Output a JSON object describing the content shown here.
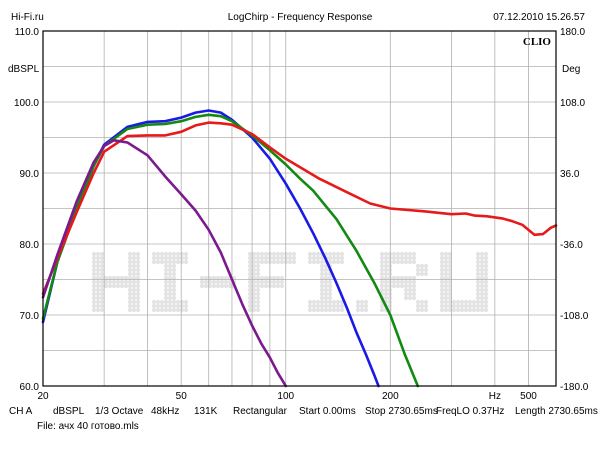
{
  "header": {
    "site": "Hi-Fi.ru",
    "title": "LogChirp - Frequency Response",
    "datetime": "07.12.2010 15.26.57",
    "brand": "CLIO"
  },
  "watermark": "HI-FI.RU",
  "footer": {
    "items": [
      "CH A",
      "dBSPL",
      "1/3 Octave",
      "48kHz",
      "131K",
      "Rectangular",
      "Start 0.00ms",
      "Stop 2730.65ms",
      "FreqLO 0.37Hz",
      "Length 2730.65ms"
    ],
    "file": "File: ачх 40 готово.mls"
  },
  "colors": {
    "background": "#ffffff",
    "grid": "#b0b0b0",
    "blue": "#1a1ae6",
    "green": "#128a12",
    "red": "#e61a1a",
    "purple": "#7a1a8c"
  },
  "chart_data": {
    "type": "line",
    "x_scale": "log",
    "xlim": [
      20,
      600
    ],
    "x_ticks": [
      {
        "value": 20,
        "label": "20"
      },
      {
        "value": 50,
        "label": "50"
      },
      {
        "value": 100,
        "label": "100"
      },
      {
        "value": 200,
        "label": "200"
      },
      {
        "value": 400,
        "label": "Hz"
      },
      {
        "value": 500,
        "label": "500"
      }
    ],
    "ylabel": "dBSPL",
    "ylim": [
      60,
      110
    ],
    "y_ticks": [
      "60.0",
      "70.0",
      "80.0",
      "90.0",
      "100.0",
      "110.0"
    ],
    "y2label": "Deg",
    "y2lim": [
      -180,
      180
    ],
    "y2_ticks": [
      "-180.0",
      "-108.0",
      "-36.0",
      "36.0",
      "108.0",
      "180.0"
    ],
    "grid": true,
    "series": [
      {
        "color": "blue",
        "x": [
          20,
          22,
          25,
          28,
          30,
          35,
          40,
          45,
          50,
          55,
          60,
          65,
          70,
          80,
          90,
          100,
          110,
          120,
          130,
          140,
          150,
          160,
          170,
          180,
          185
        ],
        "y": [
          69,
          77.5,
          85,
          91,
          94,
          96.5,
          97.2,
          97.3,
          97.8,
          98.5,
          98.8,
          98.5,
          97.5,
          95,
          92,
          88.5,
          85,
          81.5,
          78,
          74.5,
          71,
          67.5,
          64.5,
          61.5,
          60
        ]
      },
      {
        "color": "green",
        "x": [
          20,
          22,
          25,
          28,
          30,
          35,
          40,
          45,
          50,
          55,
          60,
          65,
          70,
          80,
          90,
          100,
          110,
          120,
          140,
          160,
          180,
          200,
          220,
          240
        ],
        "y": [
          69.5,
          77.5,
          85,
          91,
          93.8,
          96.2,
          96.8,
          96.9,
          97.3,
          97.9,
          98.2,
          98,
          97.3,
          95.3,
          93.2,
          91.2,
          89.2,
          87.5,
          83.5,
          79,
          74.5,
          70,
          64.5,
          60
        ]
      },
      {
        "color": "red",
        "x": [
          20,
          22,
          25,
          28,
          30,
          35,
          40,
          45,
          50,
          55,
          60,
          65,
          70,
          80,
          90,
          100,
          110,
          125,
          150,
          175,
          200,
          250,
          300,
          330,
          350,
          380,
          420,
          450,
          480,
          520,
          550,
          580,
          600
        ],
        "y": [
          73,
          78,
          84.5,
          90,
          93,
          95.2,
          95.3,
          95.3,
          95.8,
          96.7,
          97.1,
          97,
          96.8,
          95.5,
          93.6,
          92,
          90.8,
          89.2,
          87.3,
          85.7,
          85,
          84.6,
          84.2,
          84.3,
          84,
          83.9,
          83.6,
          83.2,
          82.7,
          81.3,
          81.4,
          82.3,
          82.6
        ]
      },
      {
        "color": "purple",
        "x": [
          20,
          22,
          25,
          28,
          30,
          32,
          35,
          40,
          45,
          50,
          55,
          60,
          65,
          70,
          75,
          80,
          85,
          90,
          95,
          100
        ],
        "y": [
          72.5,
          78.5,
          86,
          91.5,
          93.8,
          94.6,
          94.3,
          92.5,
          89.5,
          87,
          84.7,
          82,
          78.8,
          75,
          71.5,
          68.5,
          66,
          64,
          61.8,
          60
        ]
      }
    ]
  }
}
